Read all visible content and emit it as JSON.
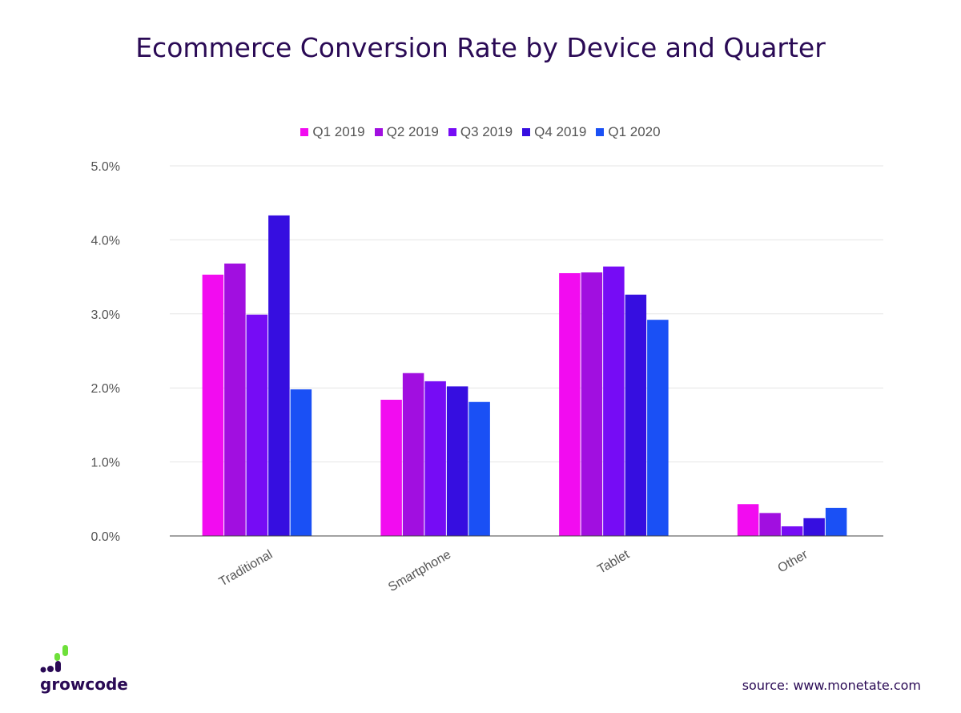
{
  "chart_data": {
    "type": "bar",
    "title": "Ecommerce Conversion Rate by Device and Quarter",
    "xlabel": "",
    "ylabel": "",
    "ylim": [
      0,
      5
    ],
    "yticks": [
      "0.0%",
      "1.0%",
      "2.0%",
      "3.0%",
      "4.0%",
      "5.0%"
    ],
    "grid": true,
    "legend_position": "top",
    "categories": [
      "Traditional",
      "Smartphone",
      "Tablet",
      "Other"
    ],
    "series": [
      {
        "name": "Q1 2019",
        "color": "#f20cf0",
        "values": [
          3.53,
          1.84,
          3.55,
          0.43
        ]
      },
      {
        "name": "Q2 2019",
        "color": "#a10fe0",
        "values": [
          3.68,
          2.2,
          3.56,
          0.31
        ]
      },
      {
        "name": "Q3 2019",
        "color": "#760cf5",
        "values": [
          2.99,
          2.09,
          3.64,
          0.13
        ]
      },
      {
        "name": "Q4 2019",
        "color": "#360ee0",
        "values": [
          4.33,
          2.02,
          3.26,
          0.24
        ]
      },
      {
        "name": "Q1 2020",
        "color": "#1a50f5",
        "values": [
          1.98,
          1.81,
          2.92,
          0.38
        ]
      }
    ]
  },
  "branding": {
    "logo_text": "growcode",
    "logo_colors": [
      "#2a0a55",
      "#6ee03a"
    ]
  },
  "source": "source: www.monetate.com"
}
